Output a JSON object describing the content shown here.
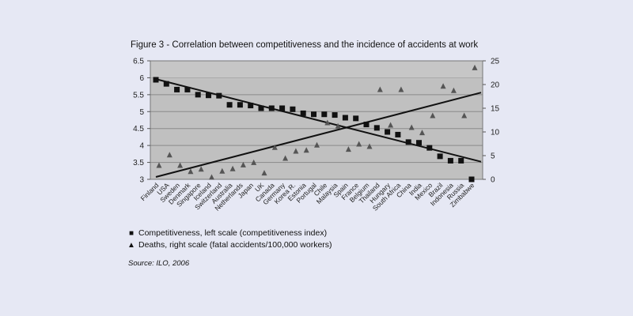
{
  "title": "Figure 3 - Correlation between competitiveness and the incidence of accidents at work",
  "legend": {
    "competitiveness": "Competitiveness, left scale (competitiveness index)",
    "deaths": "Deaths, right scale (fatal accidents/100,000 workers)",
    "marker_square": "■",
    "marker_triangle": "▲"
  },
  "source": "Source: ILO, 2006",
  "chart_data": {
    "type": "scatter",
    "title": "Figure 3 - Correlation between competitiveness and the incidence of accidents at work",
    "categories": [
      "Finland",
      "USA",
      "Sweden",
      "Denmark",
      "Singapore",
      "Iceland",
      "Switzerland",
      "Australia",
      "Netherlands",
      "Japan",
      "UK",
      "Canada",
      "Germany",
      "Korea R.",
      "Estonia",
      "Portugal",
      "Chile",
      "Malaysia",
      "Spain",
      "France",
      "Belgium",
      "Thailand",
      "Hungary",
      "South Africa",
      "China",
      "India",
      "Mexico",
      "Brazil",
      "Indonesia",
      "Russia",
      "Zimbabwe"
    ],
    "y_left": {
      "min": 3,
      "max": 6.5,
      "ticks": [
        "3",
        "3.5",
        "4",
        "4.5",
        "5",
        "5.5",
        "6",
        "6.5"
      ]
    },
    "y_right": {
      "min": 0,
      "max": 25,
      "ticks": [
        "0",
        "5",
        "10",
        "15",
        "20",
        "25"
      ]
    },
    "grid": true,
    "series": [
      {
        "name": "Competitiveness, left scale (competitiveness index)",
        "axis": "left",
        "marker": "square",
        "color": "#111111",
        "values": [
          5.94,
          5.82,
          5.65,
          5.65,
          5.5,
          5.48,
          5.47,
          5.2,
          5.2,
          5.18,
          5.1,
          5.1,
          5.1,
          5.07,
          4.95,
          4.92,
          4.92,
          4.9,
          4.82,
          4.8,
          4.62,
          4.52,
          4.4,
          4.32,
          4.1,
          4.08,
          3.93,
          3.68,
          3.55,
          3.55,
          3.0
        ],
        "trend": [
          5.96,
          3.52
        ]
      },
      {
        "name": "Deaths, right scale (fatal accidents/100,000 workers)",
        "axis": "right",
        "marker": "triangle",
        "color": "#555555",
        "values": [
          3,
          5.2,
          3,
          1.7,
          2.2,
          0.5,
          1.8,
          2.3,
          3.1,
          3.6,
          1.4,
          6.8,
          4.5,
          6,
          6.2,
          7.3,
          12,
          11.3,
          6.4,
          7.5,
          7,
          19,
          11.5,
          19,
          11,
          9.9,
          13.5,
          19.7,
          18.8,
          13.5,
          23.6
        ],
        "trend": [
          0.5,
          18.3
        ]
      }
    ]
  }
}
